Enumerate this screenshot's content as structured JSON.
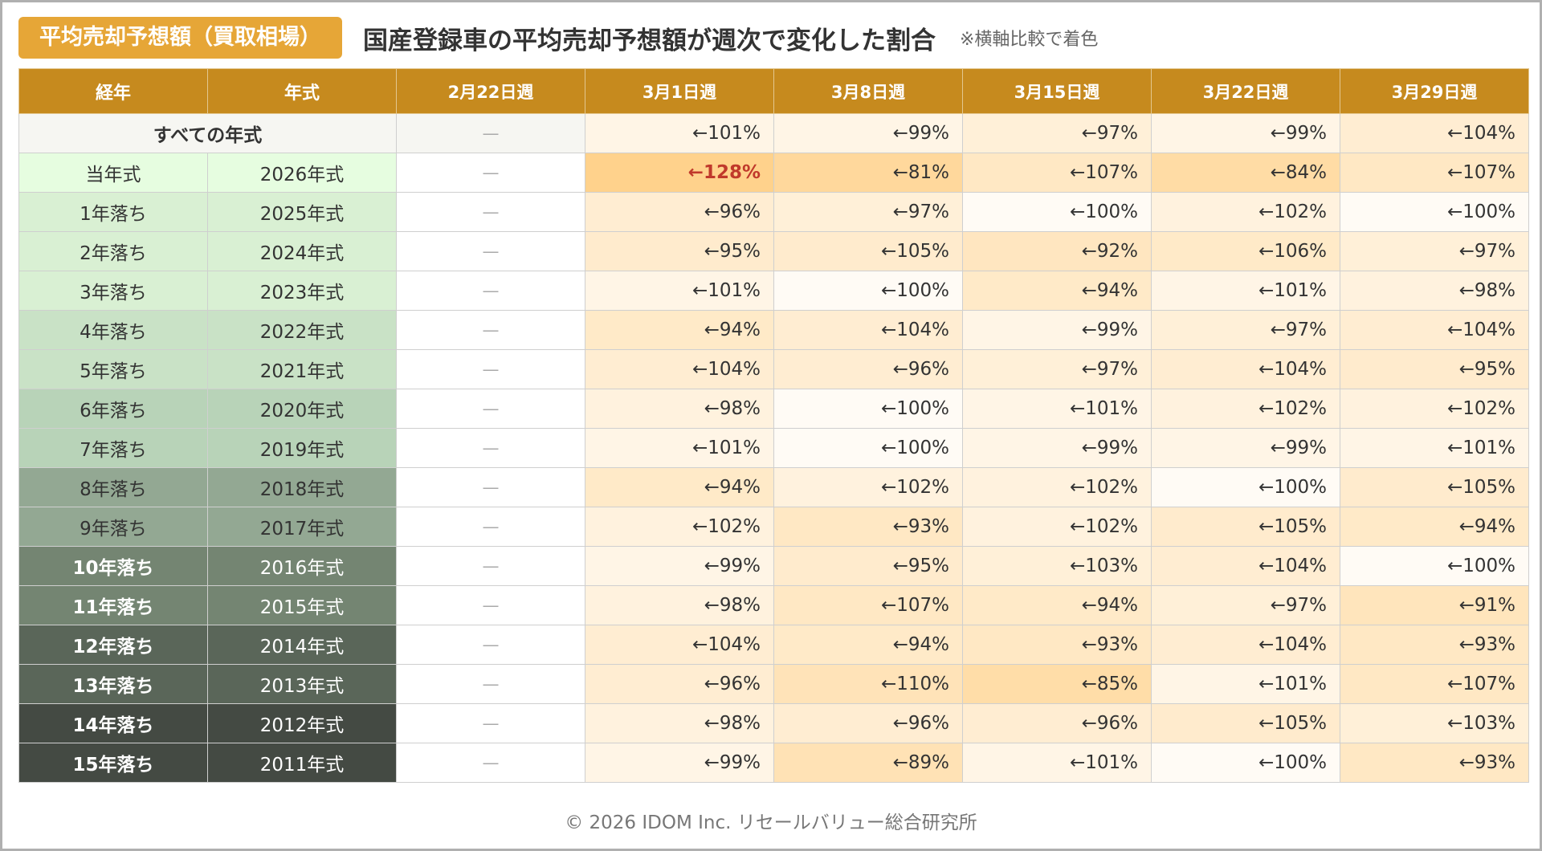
{
  "header": {
    "badge": "平均売却予想額（買取相場）",
    "title": "国産登録車の平均売却予想額が週次で変化した割合",
    "note": "※横軸比較で着色"
  },
  "table": {
    "columns": [
      "経年",
      "年式",
      "2月22日週",
      "3月1日週",
      "3月8日週",
      "3月15日週",
      "3月22日週",
      "3月29日週"
    ],
    "all_row": {
      "label": "すべての年式",
      "first": "—",
      "values": [
        "←101%",
        "←99%",
        "←97%",
        "←99%",
        "←104%"
      ]
    },
    "rows": [
      {
        "age": "当年式",
        "year": "2026年式",
        "first": "—",
        "values": [
          "←128%",
          "←81%",
          "←107%",
          "←84%",
          "←107%"
        ]
      },
      {
        "age": "1年落ち",
        "year": "2025年式",
        "first": "—",
        "values": [
          "←96%",
          "←97%",
          "←100%",
          "←102%",
          "←100%"
        ]
      },
      {
        "age": "2年落ち",
        "year": "2024年式",
        "first": "—",
        "values": [
          "←95%",
          "←105%",
          "←92%",
          "←106%",
          "←97%"
        ]
      },
      {
        "age": "3年落ち",
        "year": "2023年式",
        "first": "—",
        "values": [
          "←101%",
          "←100%",
          "←94%",
          "←101%",
          "←98%"
        ]
      },
      {
        "age": "4年落ち",
        "year": "2022年式",
        "first": "—",
        "values": [
          "←94%",
          "←104%",
          "←99%",
          "←97%",
          "←104%"
        ]
      },
      {
        "age": "5年落ち",
        "year": "2021年式",
        "first": "—",
        "values": [
          "←104%",
          "←96%",
          "←97%",
          "←104%",
          "←95%"
        ]
      },
      {
        "age": "6年落ち",
        "year": "2020年式",
        "first": "—",
        "values": [
          "←98%",
          "←100%",
          "←101%",
          "←102%",
          "←102%"
        ]
      },
      {
        "age": "7年落ち",
        "year": "2019年式",
        "first": "—",
        "values": [
          "←101%",
          "←100%",
          "←99%",
          "←99%",
          "←101%"
        ]
      },
      {
        "age": "8年落ち",
        "year": "2018年式",
        "first": "—",
        "values": [
          "←94%",
          "←102%",
          "←102%",
          "←100%",
          "←105%"
        ]
      },
      {
        "age": "9年落ち",
        "year": "2017年式",
        "first": "—",
        "values": [
          "←102%",
          "←93%",
          "←102%",
          "←105%",
          "←94%"
        ]
      },
      {
        "age": "10年落ち",
        "year": "2016年式",
        "first": "—",
        "values": [
          "←99%",
          "←95%",
          "←103%",
          "←104%",
          "←100%"
        ]
      },
      {
        "age": "11年落ち",
        "year": "2015年式",
        "first": "—",
        "values": [
          "←98%",
          "←107%",
          "←94%",
          "←97%",
          "←91%"
        ]
      },
      {
        "age": "12年落ち",
        "year": "2014年式",
        "first": "—",
        "values": [
          "←104%",
          "←94%",
          "←93%",
          "←104%",
          "←93%"
        ]
      },
      {
        "age": "13年落ち",
        "year": "2013年式",
        "first": "—",
        "values": [
          "←96%",
          "←110%",
          "←85%",
          "←101%",
          "←107%"
        ]
      },
      {
        "age": "14年落ち",
        "year": "2012年式",
        "first": "—",
        "values": [
          "←98%",
          "←96%",
          "←96%",
          "←105%",
          "←103%"
        ]
      },
      {
        "age": "15年落ち",
        "year": "2011年式",
        "first": "—",
        "values": [
          "←99%",
          "←89%",
          "←101%",
          "←100%",
          "←93%"
        ]
      }
    ]
  },
  "colors": {
    "header_bg": "#c68a1e",
    "badge_bg": "#e6a637",
    "highlight_text": "#c0392b",
    "all_row_bg": "#f6f6f2",
    "age_row_bgs": [
      "#e6fde0",
      "#d9f0d3",
      "#d9f0d3",
      "#d9f0d3",
      "#c9e2c6",
      "#c9e2c6",
      "#b8d3b8",
      "#b8d3b8",
      "#93a893",
      "#93a893",
      "#748572",
      "#748572",
      "#5a6659",
      "#5a6659",
      "#444a43",
      "#444a43"
    ]
  },
  "footer": "© 2026 IDOM Inc. リセールバリュー総合研究所"
}
